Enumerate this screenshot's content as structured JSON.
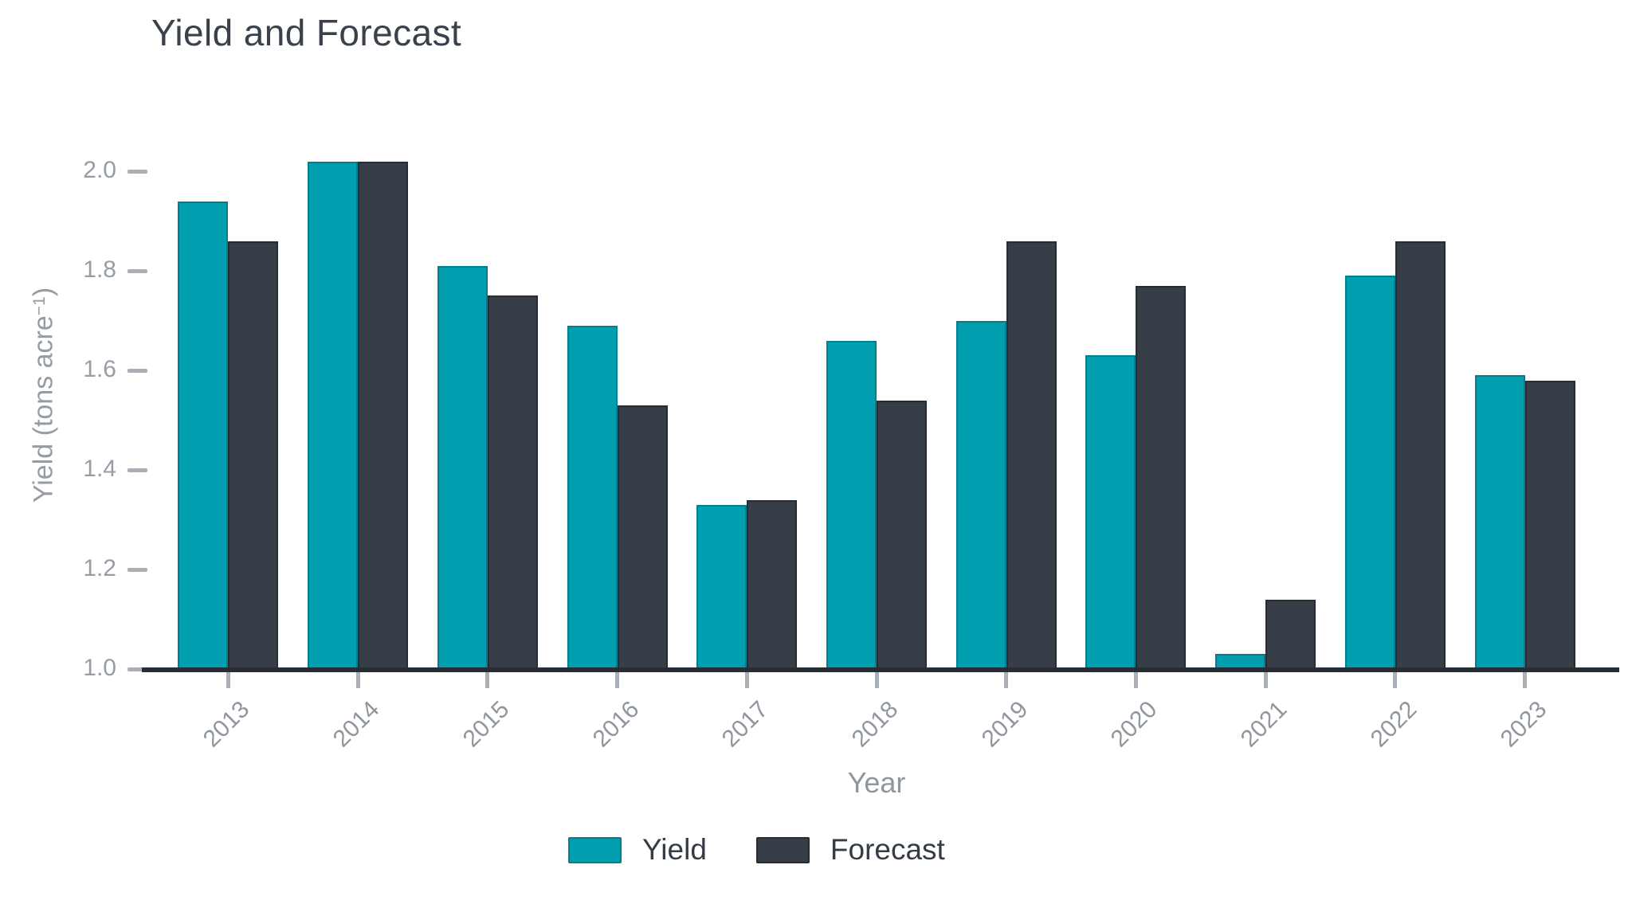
{
  "title": "Yield and Forecast",
  "axis_titles": {
    "x": "Year",
    "y_parts": {
      "main": "Yield (tons acre",
      "sup": "−1",
      "close": ")"
    }
  },
  "colors": {
    "background": "#FFFFFF",
    "title_text": "#39424C",
    "axis_line": "#262D35",
    "tick_mark": "#A9AFB5",
    "tick_label_text": "#969DA4",
    "axis_title_text": "#8F969D",
    "legend_text": "#343D46",
    "yield_teal": "#009EAF",
    "forecast_slate": "#373E48"
  },
  "chart_data": {
    "type": "bar",
    "title": "Yield and Forecast",
    "xlabel": "Year",
    "ylabel": "Yield (tons acre⁻¹)",
    "categories": [
      "2013",
      "2014",
      "2015",
      "2016",
      "2017",
      "2018",
      "2019",
      "2020",
      "2021",
      "2022",
      "2023"
    ],
    "series": [
      {
        "name": "Yield",
        "color": "#009EAF",
        "edge": "#00808F",
        "values": [
          1.94,
          2.02,
          1.81,
          1.69,
          1.33,
          1.66,
          1.7,
          1.63,
          1.03,
          1.79,
          1.59
        ]
      },
      {
        "name": "Forecast",
        "color": "#373E48",
        "edge": "#262C34",
        "values": [
          1.86,
          2.02,
          1.75,
          1.53,
          1.34,
          1.54,
          1.86,
          1.77,
          1.14,
          1.86,
          1.58
        ]
      }
    ],
    "yticks": [
      {
        "value": 2.0,
        "label": "2.0"
      },
      {
        "value": 1.8,
        "label": "1.8"
      },
      {
        "value": 1.6,
        "label": "1.6"
      },
      {
        "value": 1.4,
        "label": "1.4"
      },
      {
        "value": 1.2,
        "label": "1.2"
      },
      {
        "value": 1.0,
        "label": "1.0"
      }
    ],
    "ylim": [
      1.0,
      2.1
    ],
    "grid": false,
    "legend_position": "bottom-center"
  }
}
